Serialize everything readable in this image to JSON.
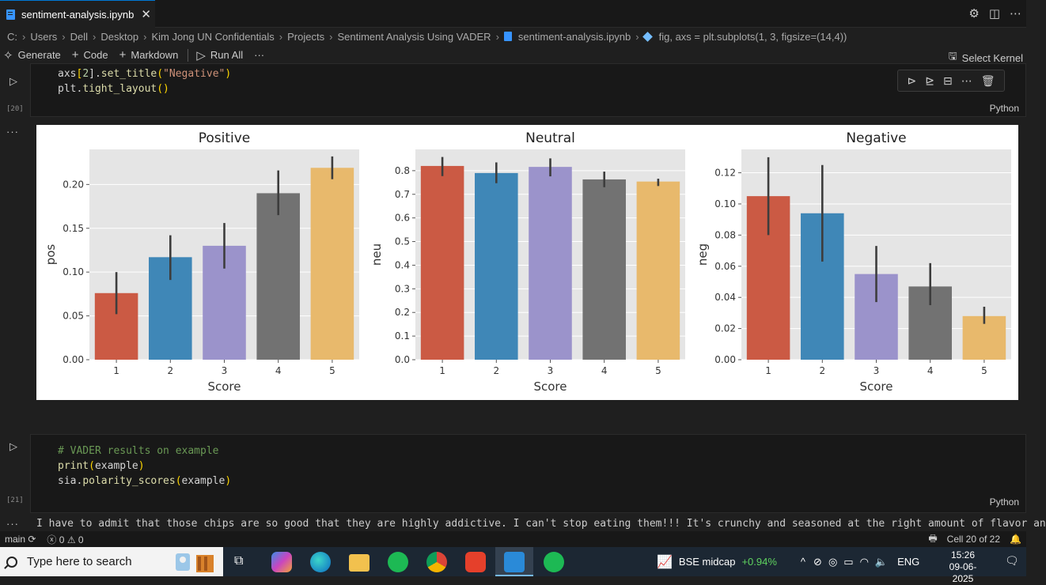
{
  "tab": {
    "title": "sentiment-analysis.ipynb",
    "close": "✕"
  },
  "breadcrumb": [
    "C:",
    "Users",
    "Dell",
    "Desktop",
    "Kim Jong UN Confidentials",
    "Projects",
    "Sentiment Analysis Using VADER",
    "sentiment-analysis.ipynb",
    "fig, axs = plt.subplots(1, 3, figsize=(14,4))"
  ],
  "toolbar": {
    "generate": "Generate",
    "code": "Code",
    "markdown": "Markdown",
    "run_all": "Run All",
    "more": "···",
    "select_kernel": "Select Kernel"
  },
  "cell20": {
    "line1_a": "axs",
    "line1_b": "[",
    "line1_c": "2",
    "line1_d": "].",
    "line1_fn": "set_title",
    "line1_p1": "(",
    "line1_str": "\"Negative\"",
    "line1_p2": ")",
    "line2_a": "plt.",
    "line2_fn": "tight_layout",
    "line2_p": "()",
    "exec_count": "[20]",
    "language": "Python"
  },
  "cell21": {
    "comment": "# VADER results on example",
    "line2_fn": "print",
    "line2_p1": "(",
    "line2_arg": "example",
    "line2_p2": ")",
    "line3_a": "sia.",
    "line3_fn": "polarity_scores",
    "line3_p1": "(",
    "line3_arg": "example",
    "line3_p2": ")",
    "exec_count": "[21]",
    "language": "Python",
    "output": "I have to admit that those chips are so good that they are highly addictive. I can't stop eating them!!! It's crunchy and seasoned at the right amount of flavor an"
  },
  "statusbar": {
    "branch": "main",
    "errors": "0",
    "warnings": "0",
    "cell_pos": "Cell 20 of 22"
  },
  "taskbar": {
    "search_placeholder": "Type here to search",
    "stock_name": "BSE midcap",
    "stock_change": "+0.94%",
    "lang": "ENG",
    "time": "15:26",
    "date": "09-06-2025"
  },
  "colors": {
    "red": "#cb5a44",
    "blue": "#3f87b7",
    "purple": "#9b93cb",
    "gray": "#727272",
    "yellow": "#e8b96c",
    "axes_bg": "#e5e5e5"
  },
  "chart_data": [
    {
      "type": "bar",
      "title": "Positive",
      "xlabel": "Score",
      "ylabel": "pos",
      "categories": [
        "1",
        "2",
        "3",
        "4",
        "5"
      ],
      "values": [
        0.076,
        0.117,
        0.13,
        0.19,
        0.219
      ],
      "error": [
        [
          0.052,
          0.1
        ],
        [
          0.091,
          0.142
        ],
        [
          0.104,
          0.156
        ],
        [
          0.165,
          0.216
        ],
        [
          0.206,
          0.232
        ]
      ],
      "ylim": [
        0,
        0.24
      ],
      "yticks": [
        "0.00",
        "0.05",
        "0.10",
        "0.15",
        "0.20"
      ],
      "grid": true
    },
    {
      "type": "bar",
      "title": "Neutral",
      "xlabel": "Score",
      "ylabel": "neu",
      "categories": [
        "1",
        "2",
        "3",
        "4",
        "5"
      ],
      "values": [
        0.82,
        0.79,
        0.816,
        0.763,
        0.754
      ],
      "error": [
        [
          0.777,
          0.858
        ],
        [
          0.747,
          0.835
        ],
        [
          0.776,
          0.852
        ],
        [
          0.73,
          0.796
        ],
        [
          0.735,
          0.766
        ]
      ],
      "ylim": [
        0,
        0.89
      ],
      "yticks": [
        "0.0",
        "0.1",
        "0.2",
        "0.3",
        "0.4",
        "0.5",
        "0.6",
        "0.7",
        "0.8"
      ],
      "grid": true
    },
    {
      "type": "bar",
      "title": "Negative",
      "xlabel": "Score",
      "ylabel": "neg",
      "categories": [
        "1",
        "2",
        "3",
        "4",
        "5"
      ],
      "values": [
        0.105,
        0.094,
        0.055,
        0.047,
        0.028
      ],
      "error": [
        [
          0.08,
          0.13
        ],
        [
          0.063,
          0.125
        ],
        [
          0.037,
          0.073
        ],
        [
          0.035,
          0.062
        ],
        [
          0.023,
          0.034
        ]
      ],
      "ylim": [
        0,
        0.135
      ],
      "yticks": [
        "0.00",
        "0.02",
        "0.04",
        "0.06",
        "0.08",
        "0.10",
        "0.12"
      ],
      "grid": true
    }
  ]
}
